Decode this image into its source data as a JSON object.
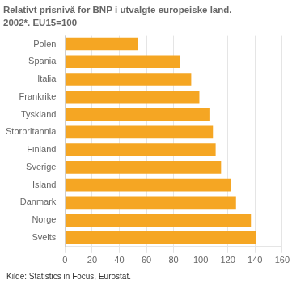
{
  "chart_data": {
    "type": "bar",
    "orientation": "horizontal",
    "title": "Relativt prisnivå for BNP i utvalgte europeiske land.",
    "subtitle": "2002*. EU15=100",
    "annotations": [
      "Kilde: Statistics in Focus, Eurostat."
    ],
    "categories": [
      "Polen",
      "Spania",
      "Italia",
      "Frankrike",
      "Tyskland",
      "Storbritannia",
      "Finland",
      "Sverige",
      "Island",
      "Danmark",
      "Norge",
      "Sveits"
    ],
    "values": [
      54,
      85,
      93,
      99,
      107,
      109,
      111,
      115,
      122,
      126,
      137,
      141
    ],
    "color": "#F5A623",
    "xlim": [
      0,
      160
    ],
    "xticks": [
      0,
      20,
      40,
      60,
      80,
      100,
      120,
      140,
      160
    ],
    "grid": true
  }
}
